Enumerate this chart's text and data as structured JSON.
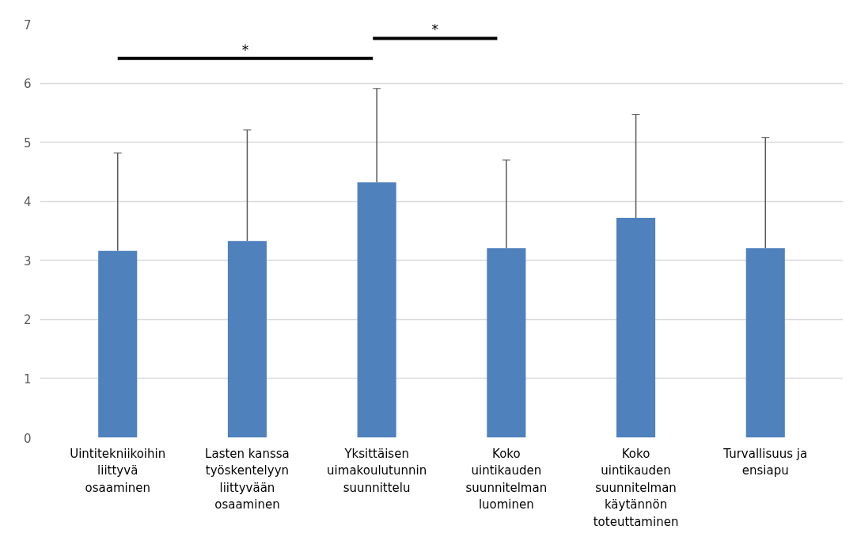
{
  "chart_data": {
    "type": "bar",
    "categories": [
      "Uintitekniikoihin liittyvä osaaminen",
      "Lasten kanssa työskentelyyn liittyvään osaaminen",
      "Yksittäisen uimakoulutunnin suunnittelu",
      "Koko uintikauden suunnitelman luominen",
      "Koko uintikauden suunnitelman käytännön toteuttaminen",
      "Turvallisuus ja ensiapu"
    ],
    "values": [
      3.16,
      3.33,
      4.32,
      3.21,
      3.72,
      3.21
    ],
    "errors": [
      [
        3.16,
        4.82
      ],
      [
        3.33,
        5.21
      ],
      [
        4.32,
        5.91
      ],
      [
        3.21,
        4.7
      ],
      [
        3.72,
        5.47
      ],
      [
        3.21,
        5.08
      ]
    ],
    "color": "#4f81bd",
    "ylim": [
      0,
      7
    ],
    "yticks": [
      0,
      1,
      2,
      3,
      4,
      5,
      6,
      7
    ],
    "grid": "y",
    "annotations": [
      "*",
      "*"
    ]
  }
}
